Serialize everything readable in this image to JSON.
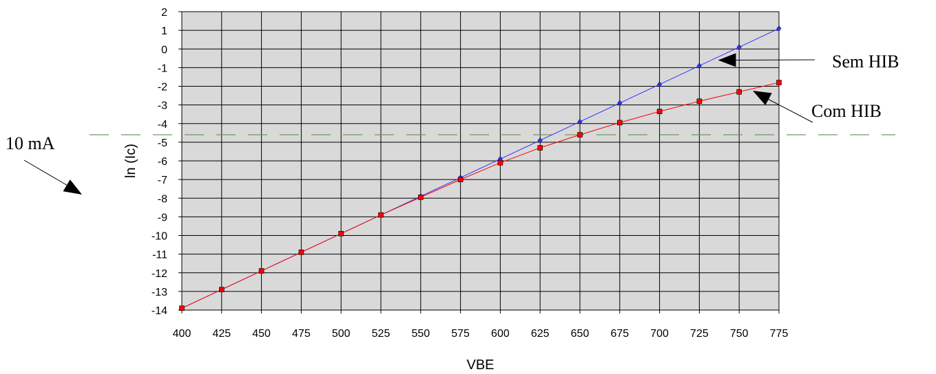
{
  "chart_data": {
    "type": "line",
    "xlabel": "VBE",
    "ylabel": "ln (Ic)",
    "xlim": [
      400,
      775
    ],
    "ylim": [
      -14,
      2
    ],
    "x_ticks": [
      400,
      425,
      450,
      475,
      500,
      525,
      550,
      575,
      600,
      625,
      650,
      675,
      700,
      725,
      750,
      775
    ],
    "y_ticks": [
      2,
      1,
      0,
      -1,
      -2,
      -3,
      -4,
      -5,
      -6,
      -7,
      -8,
      -9,
      -10,
      -11,
      -12,
      -13,
      -14
    ],
    "grid": true,
    "plot_background": "#d9d9d9",
    "x": [
      400,
      425,
      450,
      475,
      500,
      525,
      550,
      575,
      600,
      625,
      650,
      675,
      700,
      725,
      750,
      775
    ],
    "series": [
      {
        "color": "#3030ff",
        "marker": "diamond",
        "values": [
          -13.9,
          -12.9,
          -11.9,
          -10.9,
          -9.9,
          -8.9,
          -7.9,
          -6.9,
          -5.9,
          -4.9,
          -3.9,
          -2.9,
          -1.9,
          -0.9,
          0.1,
          1.1
        ]
      },
      {
        "color": "#ff0000",
        "marker": "square",
        "values": [
          -13.9,
          -12.9,
          -11.9,
          -10.9,
          -9.9,
          -8.9,
          -7.95,
          -7.0,
          -6.1,
          -5.3,
          -4.6,
          -3.95,
          -3.35,
          -2.8,
          -2.3,
          -1.8
        ]
      }
    ],
    "reference_line": {
      "y": -4.6,
      "color": "#6e9a5a",
      "style": "dashed"
    },
    "annotations": [
      {
        "text": "Sem HIB",
        "target_series": 0,
        "target_x": 735
      },
      {
        "text": "Com HIB",
        "target_series": 1,
        "target_x": 755
      },
      {
        "text": "10 mA",
        "target": "reference_line"
      }
    ]
  }
}
